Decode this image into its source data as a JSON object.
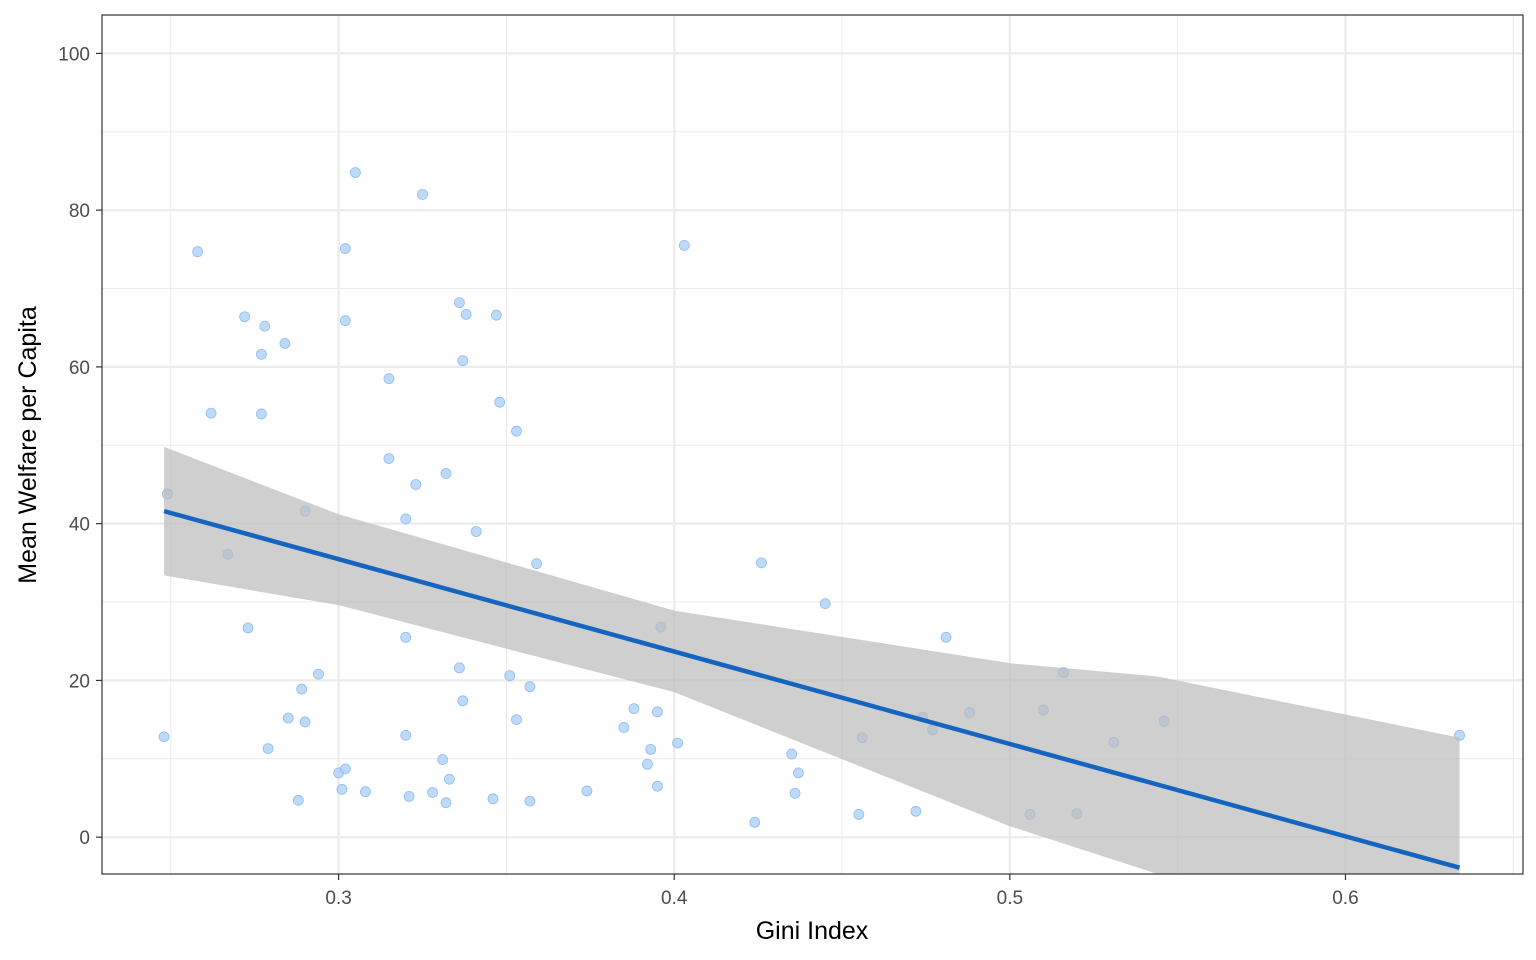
{
  "chart_data": {
    "type": "scatter",
    "title": "",
    "xlabel": "Gini Index",
    "ylabel": "Mean Welfare per Capita",
    "xlim": [
      0.2295,
      0.6529
    ],
    "ylim": [
      -4.7,
      104.9
    ],
    "x_ticks": [
      0.3,
      0.4,
      0.5,
      0.6
    ],
    "x_tick_labels": [
      "0.3",
      "0.4",
      "0.5",
      "0.6"
    ],
    "y_ticks": [
      0,
      20,
      40,
      60,
      80,
      100
    ],
    "y_tick_labels": [
      "0",
      "20",
      "40",
      "60",
      "80",
      "100"
    ],
    "grid": true,
    "legend": "none",
    "colors": {
      "points": "#a9cdf7",
      "trend": "#1565c0",
      "band": "#bdbdbd",
      "grid": "#ebebeb",
      "border": "#333333"
    },
    "points": [
      [
        0.249,
        43.8
      ],
      [
        0.258,
        74.7
      ],
      [
        0.262,
        54.1
      ],
      [
        0.267,
        36.1
      ],
      [
        0.272,
        66.4
      ],
      [
        0.273,
        26.7
      ],
      [
        0.277,
        61.6
      ],
      [
        0.277,
        54.0
      ],
      [
        0.278,
        65.2
      ],
      [
        0.284,
        63.0
      ],
      [
        0.285,
        15.2
      ],
      [
        0.279,
        11.3
      ],
      [
        0.288,
        4.7
      ],
      [
        0.289,
        18.9
      ],
      [
        0.29,
        41.6
      ],
      [
        0.29,
        14.7
      ],
      [
        0.294,
        20.8
      ],
      [
        0.3,
        8.2
      ],
      [
        0.302,
        8.7
      ],
      [
        0.301,
        6.1
      ],
      [
        0.302,
        65.9
      ],
      [
        0.302,
        75.1
      ],
      [
        0.305,
        84.8
      ],
      [
        0.308,
        5.8
      ],
      [
        0.315,
        58.5
      ],
      [
        0.315,
        48.3
      ],
      [
        0.32,
        25.5
      ],
      [
        0.32,
        40.6
      ],
      [
        0.32,
        13.0
      ],
      [
        0.321,
        5.2
      ],
      [
        0.323,
        45.0
      ],
      [
        0.325,
        82.0
      ],
      [
        0.328,
        5.7
      ],
      [
        0.331,
        9.9
      ],
      [
        0.332,
        46.4
      ],
      [
        0.332,
        4.4
      ],
      [
        0.333,
        7.4
      ],
      [
        0.336,
        68.2
      ],
      [
        0.336,
        21.6
      ],
      [
        0.337,
        17.4
      ],
      [
        0.337,
        60.8
      ],
      [
        0.338,
        66.7
      ],
      [
        0.341,
        39.0
      ],
      [
        0.346,
        4.9
      ],
      [
        0.347,
        66.6
      ],
      [
        0.348,
        55.5
      ],
      [
        0.351,
        20.6
      ],
      [
        0.353,
        51.8
      ],
      [
        0.353,
        15.0
      ],
      [
        0.357,
        19.2
      ],
      [
        0.357,
        4.6
      ],
      [
        0.359,
        34.9
      ],
      [
        0.374,
        5.9
      ],
      [
        0.385,
        14.0
      ],
      [
        0.388,
        16.4
      ],
      [
        0.392,
        9.3
      ],
      [
        0.393,
        11.2
      ],
      [
        0.395,
        16.0
      ],
      [
        0.395,
        6.5
      ],
      [
        0.396,
        26.8
      ],
      [
        0.401,
        12.0
      ],
      [
        0.403,
        75.5
      ],
      [
        0.424,
        1.9
      ],
      [
        0.426,
        35.0
      ],
      [
        0.435,
        10.6
      ],
      [
        0.436,
        5.6
      ],
      [
        0.437,
        8.2
      ],
      [
        0.445,
        29.8
      ],
      [
        0.455,
        2.9
      ],
      [
        0.456,
        12.7
      ],
      [
        0.472,
        3.3
      ],
      [
        0.474,
        15.3
      ],
      [
        0.477,
        13.7
      ],
      [
        0.481,
        25.5
      ],
      [
        0.488,
        15.9
      ],
      [
        0.506,
        2.9
      ],
      [
        0.51,
        16.2
      ],
      [
        0.516,
        21.0
      ],
      [
        0.52,
        3.0
      ],
      [
        0.531,
        12.1
      ],
      [
        0.546,
        14.8
      ],
      [
        0.634,
        13.0
      ],
      [
        0.248,
        12.8
      ]
    ],
    "trend_line": {
      "x": [
        0.248,
        0.634
      ],
      "y": [
        41.6,
        -3.9
      ]
    },
    "confidence_band": {
      "x": [
        0.248,
        0.3,
        0.4,
        0.5,
        0.544,
        0.634
      ],
      "upper": [
        49.8,
        41.2,
        28.9,
        22.2,
        20.5,
        12.7
      ],
      "lower": [
        33.4,
        29.6,
        18.5,
        1.4,
        -4.7,
        -4.7
      ]
    }
  }
}
